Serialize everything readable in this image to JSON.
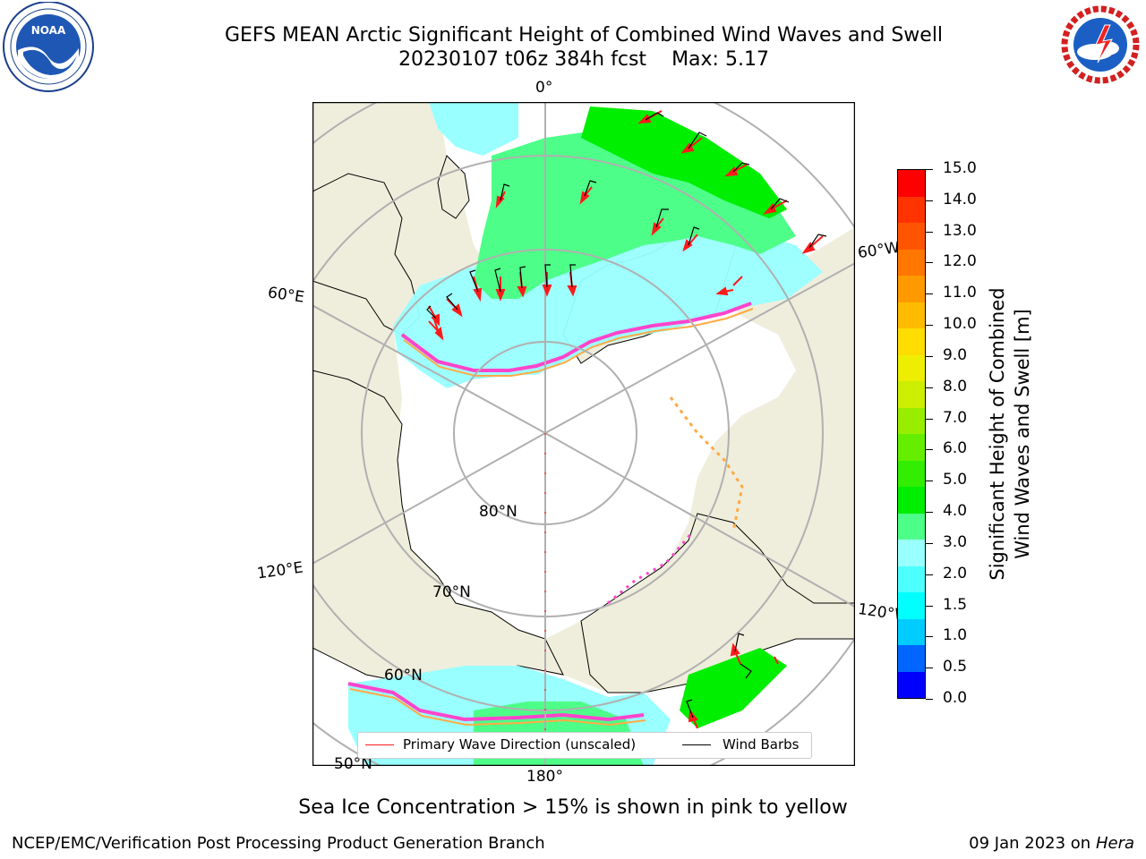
{
  "header": {
    "title": "GEFS MEAN Arctic Significant Height of Combined Wind Waves and Swell",
    "run": "20230107 t06z 384h fcst",
    "max": "Max: 5.17"
  },
  "logos": {
    "left": "NOAA",
    "right": "NATIONAL WEATHER SERVICE"
  },
  "map": {
    "lon_labels": {
      "top": "0°",
      "left_upper": "60°E",
      "right_upper": "60°W",
      "left_lower": "120°E",
      "right_lower": "120°W",
      "bottom": "180°"
    },
    "lat_labels": {
      "inner": "80°N",
      "middle": "70°N",
      "outer": "60°N",
      "edge": "50°N"
    },
    "legend": {
      "wave": "Primary Wave Direction (unscaled)",
      "barbs": "Wind Barbs"
    },
    "colors": {
      "land": "#efeedc",
      "ocean_ice": "#ffffff",
      "grid": "#b0b0b0",
      "wave_arrow": "#ff1a1a"
    }
  },
  "colorbar": {
    "label_line1": "Significant Height of Combined",
    "label_line2": "Wind Waves and Swell [m]",
    "ticks": [
      "15.0",
      "14.0",
      "13.0",
      "12.0",
      "11.0",
      "10.0",
      "9.0",
      "8.0",
      "7.0",
      "6.0",
      "5.0",
      "4.0",
      "3.0",
      "2.0",
      "1.5",
      "1.0",
      "0.5",
      "0.0"
    ],
    "colors": [
      "#0000ff",
      "#0066ff",
      "#00ccff",
      "#00ffff",
      "#4dffff",
      "#99ffff",
      "#4dff88",
      "#00ee00",
      "#33ee00",
      "#66ee00",
      "#99ee00",
      "#ccee00",
      "#eeee00",
      "#ffdd00",
      "#ffbb00",
      "#ff9900",
      "#ff7700",
      "#ff5500",
      "#ff3300",
      "#ff0000"
    ]
  },
  "notes": {
    "ice": "Sea Ice Concentration > 15% is shown in pink to yellow",
    "credit": "NCEP/EMC/Verification Post Processing Product Generation Branch",
    "date": "09 Jan 2023 on",
    "machine": "Hera"
  }
}
